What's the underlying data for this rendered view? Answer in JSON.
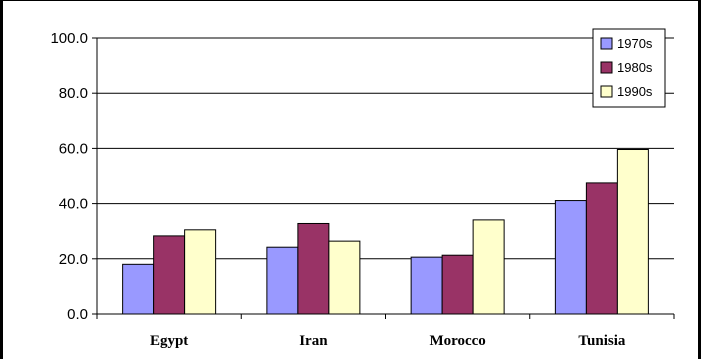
{
  "chart_data": {
    "type": "bar",
    "title": "",
    "xlabel": "",
    "ylabel": "",
    "categories": [
      "Egypt",
      "Iran",
      "Morocco",
      "Tunisia"
    ],
    "series": [
      {
        "name": "1970s",
        "values": [
          18.0,
          24.2,
          20.6,
          41.1
        ],
        "color": "#9999ff"
      },
      {
        "name": "1980s",
        "values": [
          28.3,
          32.8,
          21.3,
          47.5
        ],
        "color": "#993366"
      },
      {
        "name": "1990s",
        "values": [
          30.5,
          26.4,
          34.1,
          59.6
        ],
        "color": "#ffffcc"
      }
    ],
    "ylim": [
      0,
      100
    ],
    "yticks": [
      "0.0",
      "20.0",
      "40.0",
      "60.0",
      "80.0",
      "100.0"
    ],
    "ytick_values": [
      0,
      20,
      40,
      60,
      80,
      100
    ],
    "grid": true,
    "legend_position": "top-right"
  }
}
